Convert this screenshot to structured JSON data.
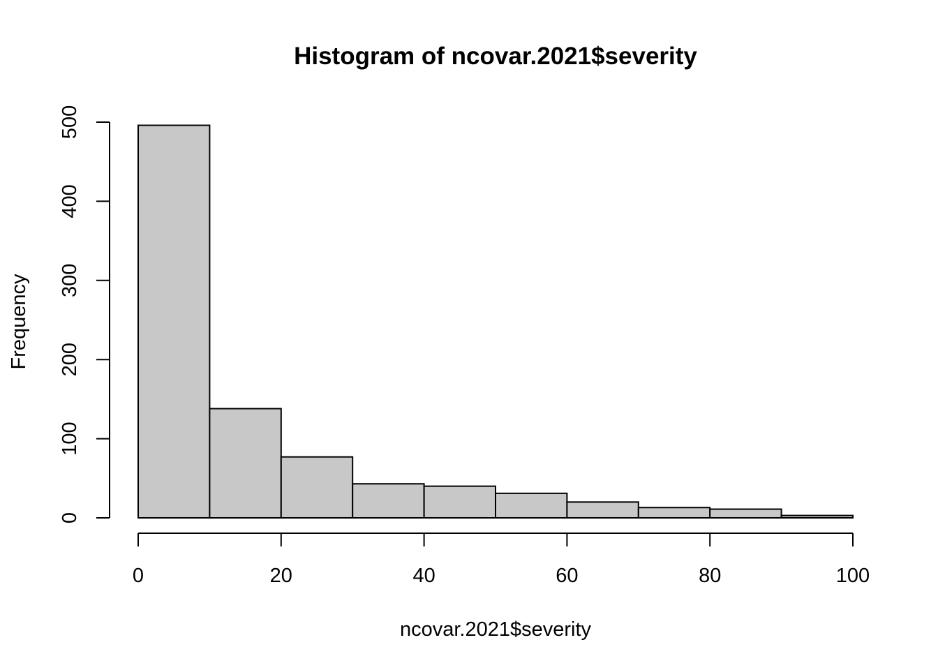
{
  "chart_data": {
    "type": "histogram",
    "title": "Histogram of ncovar.2021$severity",
    "xlabel": "ncovar.2021$severity",
    "ylabel": "Frequency",
    "bin_edges": [
      0,
      10,
      20,
      30,
      40,
      50,
      60,
      70,
      80,
      90,
      100
    ],
    "counts": [
      496,
      138,
      77,
      43,
      40,
      31,
      20,
      13,
      11,
      3
    ],
    "xlim": [
      0,
      100
    ],
    "ylim": [
      0,
      500
    ],
    "x_ticks": [
      "0",
      "20",
      "40",
      "60",
      "80",
      "100"
    ],
    "y_ticks": [
      "0",
      "100",
      "200",
      "300",
      "400",
      "500"
    ],
    "bar_fill": "#c8c8c8",
    "bar_stroke": "#000000",
    "grid": false,
    "legend": "none"
  }
}
